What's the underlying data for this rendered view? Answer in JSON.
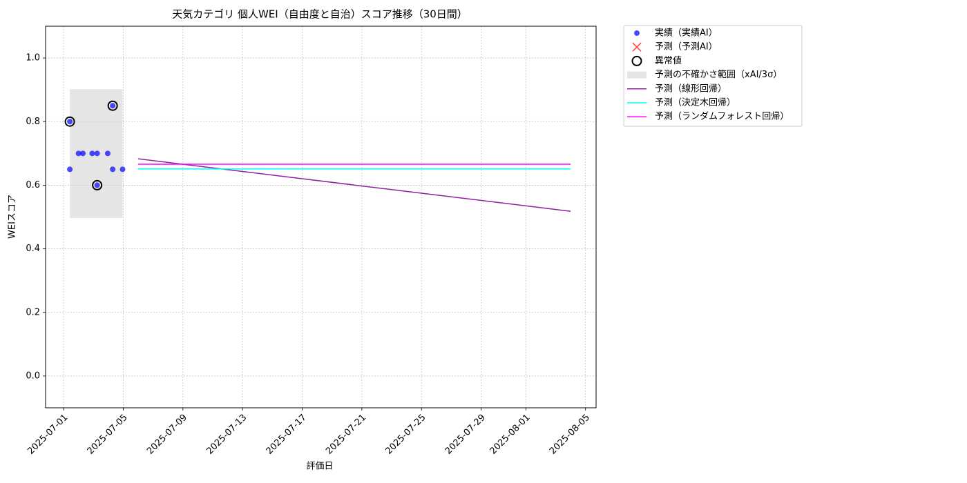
{
  "chart_data": {
    "type": "line",
    "title": "天気カテゴリ 個人WEI（自由度と自治）スコア推移（30日間）",
    "x_label": "評価日",
    "y_label": "WEIスコア",
    "xlim": [
      "2025-06-29T19:00",
      "2025-08-05T17:00"
    ],
    "ylim": [
      -0.1,
      1.1
    ],
    "xticks": [
      "2025-07-01",
      "2025-07-05",
      "2025-07-09",
      "2025-07-13",
      "2025-07-17",
      "2025-07-21",
      "2025-07-25",
      "2025-07-29",
      "2025-08-01",
      "2025-08-05"
    ],
    "yticks": [
      {
        "value": 0,
        "label": "0.0"
      },
      0.2,
      0.4,
      0.6,
      0.8,
      {
        "value": 1,
        "label": "1.0"
      }
    ],
    "grid": true,
    "legend": "outside-right",
    "series": [
      {
        "name": "実績（実績AI）",
        "type": "scatter",
        "color": "#0000ff",
        "x": [
          "2025-07-01T10:00",
          "2025-07-01T10:00",
          "2025-07-02T00:00",
          "2025-07-02T07:00",
          "2025-07-02T22:00",
          "2025-07-03T06:00",
          "2025-07-03T06:00",
          "2025-07-03T23:00",
          "2025-07-04T07:00",
          "2025-07-04T07:00",
          "2025-07-04T23:00"
        ],
        "values": [
          0.65,
          0.8,
          0.7,
          0.7,
          0.7,
          0.7,
          0.6,
          0.7,
          0.85,
          0.65,
          0.65
        ]
      },
      {
        "name": "予測（予測AI）",
        "type": "cross",
        "color": "#ff0000",
        "x": [],
        "values": []
      },
      {
        "name": "異常値",
        "type": "outlier",
        "color": "#000000",
        "x": [
          "2025-07-01T10:00",
          "2025-07-04T07:00",
          "2025-07-03T06:00"
        ],
        "values": [
          0.8,
          0.85,
          0.6
        ]
      },
      {
        "name": "予測の不確かさ範囲（xAI/3σ）",
        "type": "band",
        "color": "#d3d3d3",
        "x": [
          "2025-07-01T10:00",
          "2025-07-04T23:00"
        ],
        "lower": [
          0.497,
          0.497
        ],
        "upper": [
          0.902,
          0.902
        ]
      },
      {
        "name": "予測（線形回帰）",
        "type": "line",
        "color": "#8e1f9e",
        "x": [
          "2025-07-06",
          "2025-08-04"
        ],
        "values": [
          0.683,
          0.518
        ]
      },
      {
        "name": "予測（決定木回帰）",
        "type": "line",
        "color": "#00ffff",
        "x": [
          "2025-07-06",
          "2025-08-04"
        ],
        "values": [
          0.651,
          0.651
        ]
      },
      {
        "name": "予測（ランダムフォレスト回帰）",
        "type": "line",
        "color": "#ff00ff",
        "x": [
          "2025-07-06",
          "2025-08-04"
        ],
        "values": [
          0.666,
          0.666
        ]
      }
    ]
  }
}
